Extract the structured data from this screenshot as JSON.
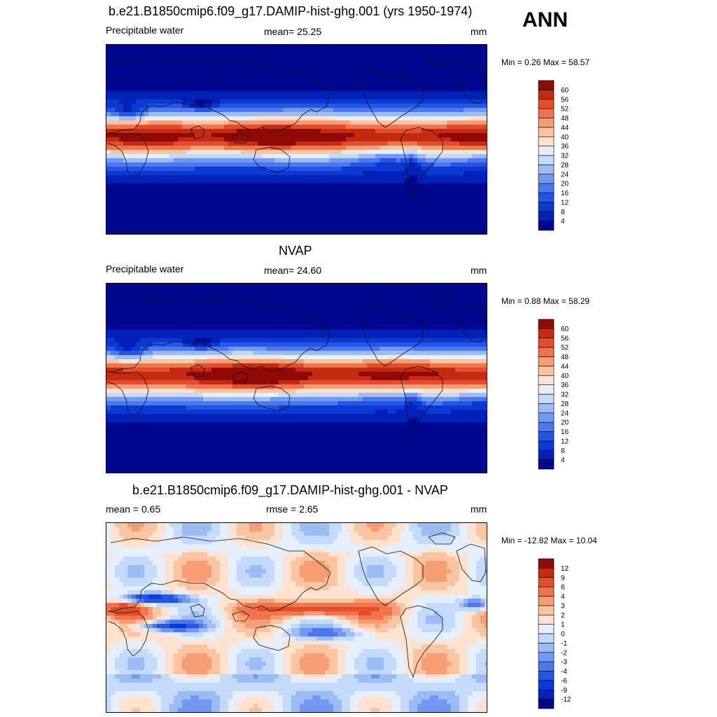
{
  "season": "ANN",
  "panels": [
    {
      "id": "model",
      "title": "b.e21.B1850cmip6.f09_g17.DAMIP-hist-ghg.001 (yrs 1950-1974)",
      "left_label": "Precipitable water",
      "center_label": "mean=  25.25",
      "units": "mm",
      "minmax": "Min =   0.26 Max =  58.57",
      "field": "abs"
    },
    {
      "id": "obs",
      "title": "NVAP",
      "left_label": "Precipitable water",
      "center_label": "mean=  24.60",
      "units": "mm",
      "minmax": "Min =   0.88 Max =  58.29",
      "field": "abs"
    },
    {
      "id": "diff",
      "title": "b.e21.B1850cmip6.f09_g17.DAMIP-hist-ghg.001 - NVAP",
      "left_label": "mean =   0.65",
      "center_label": "rmse =   2.65",
      "units": "mm",
      "minmax": "Min = -12.82 Max =  10.04",
      "field": "diff"
    }
  ],
  "colors": {
    "abs": [
      "#00098e",
      "#0022b8",
      "#0a3ad2",
      "#2654e6",
      "#4a78ee",
      "#7199f2",
      "#9cbcf6",
      "#c4dafa",
      "#e4eefc",
      "#fde3cf",
      "#fbc39f",
      "#f79d73",
      "#f1744c",
      "#e44d2a",
      "#c52a13",
      "#8f0b08"
    ],
    "diff": [
      "#00098e",
      "#0022b8",
      "#0a3ad2",
      "#2654e6",
      "#4a78ee",
      "#7199f2",
      "#9cbcf6",
      "#c4dafa",
      "#e4eefc",
      "#fde3cf",
      "#fbc39f",
      "#f79d73",
      "#f1744c",
      "#e44d2a",
      "#c52a13",
      "#8f0b08"
    ]
  },
  "colorbars": {
    "abs": [
      "4",
      "8",
      "12",
      "16",
      "20",
      "24",
      "28",
      "32",
      "36",
      "40",
      "44",
      "48",
      "52",
      "56",
      "60"
    ],
    "diff": [
      "-12",
      "-9",
      "-6",
      "-4",
      "-3",
      "-2",
      "-1",
      "0",
      "1",
      "2",
      "3",
      "4",
      "6",
      "9",
      "12"
    ]
  },
  "chart_data": [
    {
      "type": "heatmap",
      "title": "b.e21.B1850cmip6.f09_g17.DAMIP-hist-ghg.001 (yrs 1950-1974)",
      "variable": "Precipitable water",
      "units": "mm",
      "mean": 25.25,
      "min": 0.26,
      "max": 58.57,
      "contour_levels": [
        4,
        8,
        12,
        16,
        20,
        24,
        28,
        32,
        36,
        40,
        44,
        48,
        52,
        56,
        60
      ]
    },
    {
      "type": "heatmap",
      "title": "NVAP",
      "variable": "Precipitable water",
      "units": "mm",
      "mean": 24.6,
      "min": 0.88,
      "max": 58.29,
      "contour_levels": [
        4,
        8,
        12,
        16,
        20,
        24,
        28,
        32,
        36,
        40,
        44,
        48,
        52,
        56,
        60
      ]
    },
    {
      "type": "heatmap",
      "title": "b.e21.B1850cmip6.f09_g17.DAMIP-hist-ghg.001 - NVAP",
      "units": "mm",
      "mean": 0.65,
      "rmse": 2.65,
      "min": -12.82,
      "max": 10.04,
      "contour_levels": [
        -12,
        -9,
        -6,
        -4,
        -3,
        -2,
        -1,
        0,
        1,
        2,
        3,
        4,
        6,
        9,
        12
      ]
    }
  ]
}
